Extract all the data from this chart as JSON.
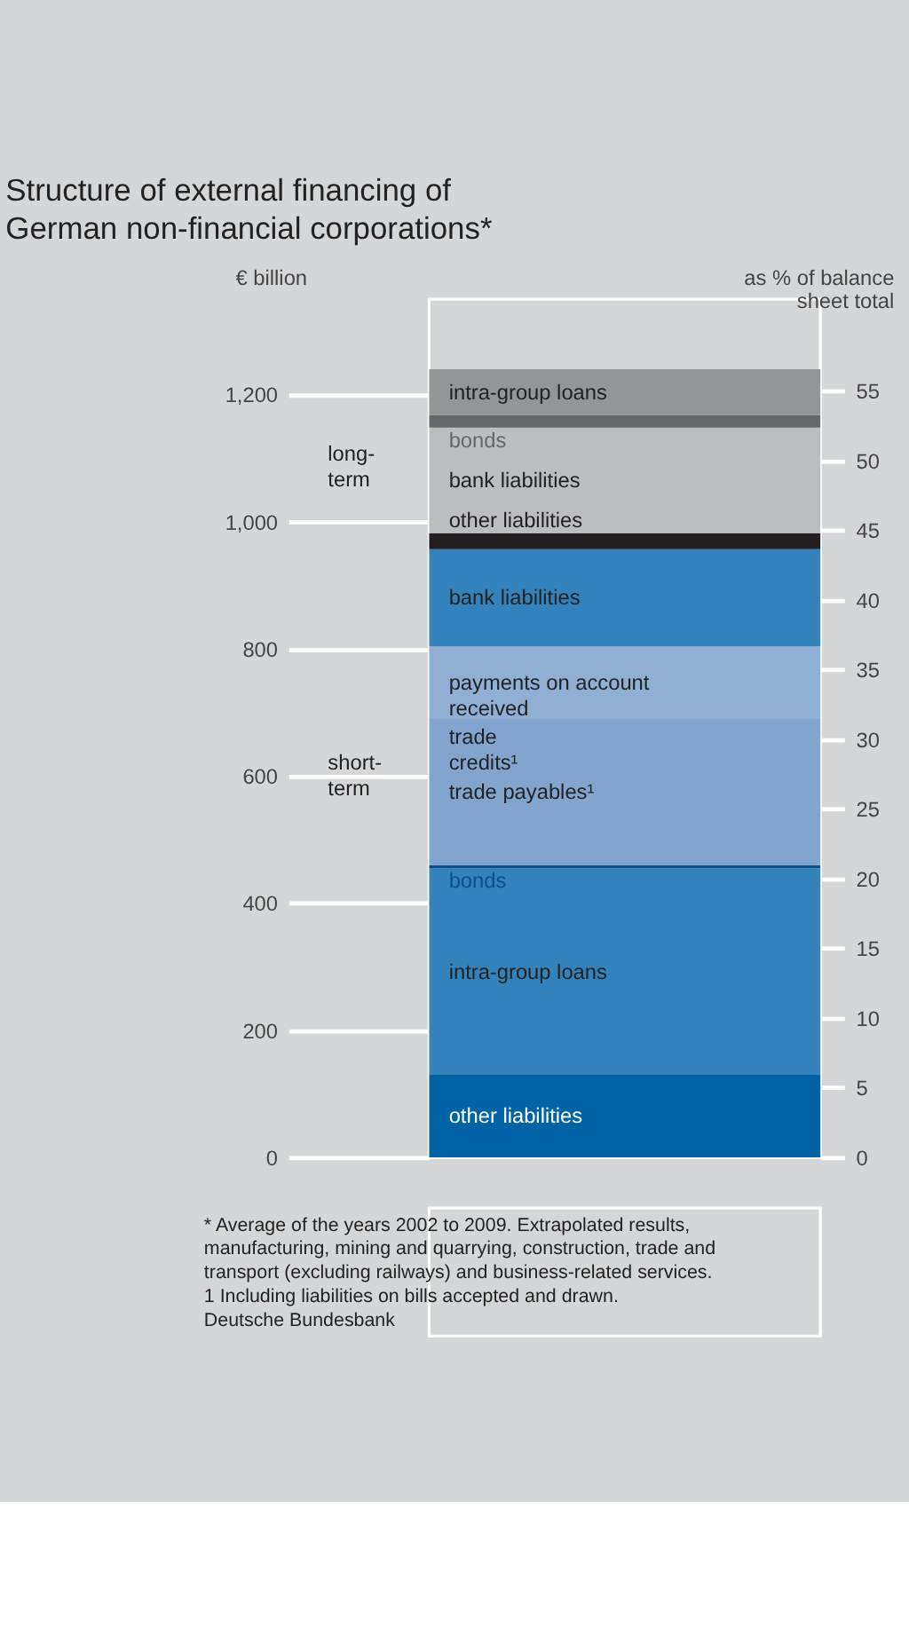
{
  "chart_data": {
    "type": "bar",
    "stacked": true,
    "title": "Structure of external financing of German non-financial corporations*",
    "ylabel": "€ billion",
    "y2label": "as % of balance sheet total",
    "categories": [
      null
    ],
    "ylim": [
      0,
      1350
    ],
    "yticks": [
      0,
      200,
      400,
      600,
      800,
      {
        "value": 1000,
        "label": "1,000"
      },
      {
        "value": 1200,
        "label": "1,200"
      }
    ],
    "y2lim": [
      0,
      61.6
    ],
    "y2ticks": [
      0,
      5,
      10,
      15,
      20,
      25,
      30,
      35,
      40,
      45,
      50,
      55
    ],
    "series": [
      {
        "name": "other liabilities",
        "color": "#0063a6",
        "values": [
          130
        ]
      },
      {
        "name": "intra-group loans",
        "color": "#3482bb",
        "values": [
          325
        ]
      },
      {
        "name": "bonds",
        "color": "#0d4f8a",
        "values": [
          5
        ]
      },
      {
        "name": "trade payables¹",
        "color": "#82a5cf",
        "values": [
          230
        ]
      },
      {
        "name": "payments on account received",
        "color": "#8fb0d4",
        "values": [
          114
        ]
      },
      {
        "name": "bank liabilities",
        "color": "#3482bb",
        "values": [
          153
        ]
      },
      {
        "name": "other liabilities",
        "color": "#231f20",
        "values": [
          25
        ]
      },
      {
        "name": "bank liabilities",
        "color": "#bcbdc0",
        "values": [
          166
        ]
      },
      {
        "name": "bonds",
        "color": "#666769",
        "values": [
          20
        ]
      },
      {
        "name": "intra-group loans",
        "color": "#939598",
        "values": [
          72
        ]
      }
    ],
    "annotations": [
      "long-term",
      "short-term",
      "trade credits¹",
      "* Average of the years 2002 to 2009. Extrapolated results, manufacturing, mining and quarrying, construction, trade and transport (excluding railways) and business-related services.",
      "1 Including liabilities on bills accepted and drawn.",
      "Deutsche Bundesbank"
    ]
  }
}
